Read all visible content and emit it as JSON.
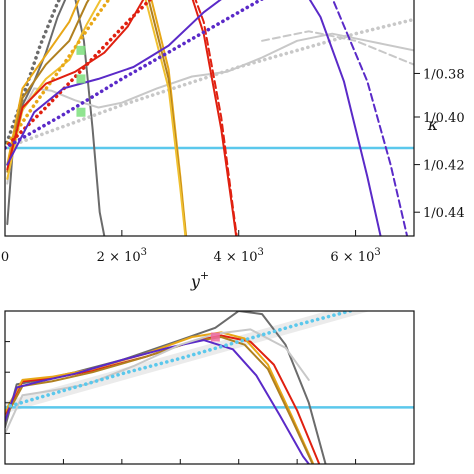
{
  "chart_data": [
    {
      "panel": "top",
      "type": "line",
      "xlabel": "y",
      "xlabel_sup": "+",
      "xlim": [
        0,
        7000
      ],
      "x_ticks": [
        {
          "value": 0,
          "label": "0",
          "sup": ""
        },
        {
          "value": 2000,
          "label": "2 × 10",
          "sup": "3"
        },
        {
          "value": 4000,
          "label": "4 × 10",
          "sup": "3"
        },
        {
          "value": 6000,
          "label": "6 × 10",
          "sup": "3"
        }
      ],
      "ylim": [
        0.35,
        0.45
      ],
      "right_axis": {
        "label": "κ",
        "ticks": [
          {
            "value": 0.3817,
            "label": "1/0.38"
          },
          {
            "value": 0.4,
            "label": "1/0.40"
          },
          {
            "value": 0.42,
            "label": "1/0.42"
          },
          {
            "value": 0.44,
            "label": "1/0.44"
          }
        ]
      },
      "reference_line": {
        "y": 0.413,
        "color": "#5bc8ec"
      },
      "series": [
        {
          "color": "#6b6b6b",
          "style": "solid",
          "x": [
            40,
            150,
            300,
            500,
            700,
            900,
            1150,
            1350,
            1500,
            1620,
            1700
          ],
          "y": [
            0.445,
            0.408,
            0.395,
            0.385,
            0.373,
            0.358,
            0.344,
            0.368,
            0.405,
            0.44,
            0.45
          ]
        },
        {
          "color": "#6b6b6b",
          "style": "dotted",
          "x": [
            0,
            300,
            600,
            900,
            1200,
            1500
          ],
          "y": [
            0.413,
            0.392,
            0.37,
            0.352,
            0.338,
            0.32
          ]
        },
        {
          "color": "#c8c8c8",
          "style": "solid",
          "x": [
            40,
            200,
            500,
            800,
            1200,
            1600,
            2000,
            2600,
            3200,
            3800,
            4400,
            5000,
            5600,
            6200,
            7000
          ],
          "y": [
            0.428,
            0.402,
            0.388,
            0.389,
            0.393,
            0.396,
            0.394,
            0.388,
            0.383,
            0.381,
            0.375,
            0.368,
            0.365,
            0.368,
            0.372
          ]
        },
        {
          "color": "#c8c8c8",
          "style": "dashed",
          "x": [
            4400,
            5200,
            6000,
            6600,
            7000
          ],
          "y": [
            0.368,
            0.364,
            0.368,
            0.374,
            0.378
          ]
        },
        {
          "color": "#c8c8c8",
          "style": "dotted",
          "x": [
            0,
            1000,
            2000,
            3000,
            4000,
            5000,
            6000,
            7000
          ],
          "y": [
            0.413,
            0.404,
            0.395,
            0.387,
            0.379,
            0.372,
            0.365,
            0.359
          ]
        },
        {
          "color": "#e8a717",
          "style": "solid",
          "x": [
            40,
            300,
            700,
            1100,
            1400,
            1700,
            2000,
            2400,
            2800,
            3000,
            3100,
            3150
          ],
          "y": [
            0.42,
            0.388,
            0.374,
            0.36,
            0.343,
            0.333,
            0.33,
            0.34,
            0.38,
            0.425,
            0.45,
            0.455
          ]
        },
        {
          "color": "#b08020",
          "style": "solid",
          "x": [
            40,
            300,
            700,
            1100,
            1400,
            1700,
            2000,
            2400,
            2800,
            3000,
            3100,
            3150
          ],
          "y": [
            0.423,
            0.392,
            0.378,
            0.368,
            0.352,
            0.34,
            0.335,
            0.345,
            0.384,
            0.428,
            0.452,
            0.456
          ]
        },
        {
          "color": "#f0c030",
          "style": "solid",
          "x": [
            40,
            300,
            700,
            1100,
            1400,
            1700,
            2000,
            2400,
            2800,
            3000,
            3100,
            3150
          ],
          "y": [
            0.426,
            0.397,
            0.384,
            0.376,
            0.361,
            0.348,
            0.342,
            0.35,
            0.388,
            0.43,
            0.453,
            0.456
          ]
        },
        {
          "color": "#e8a717",
          "style": "dotted",
          "x": [
            0,
            500,
            1000,
            1500,
            2000,
            2500
          ],
          "y": [
            0.413,
            0.395,
            0.378,
            0.36,
            0.343,
            0.325
          ]
        },
        {
          "color": "#e02010",
          "style": "solid",
          "x": [
            40,
            300,
            700,
            1200,
            1700,
            2100,
            2500,
            2800,
            3100,
            3400,
            3700,
            3900,
            4000
          ],
          "y": [
            0.422,
            0.396,
            0.386,
            0.381,
            0.373,
            0.362,
            0.345,
            0.338,
            0.342,
            0.365,
            0.405,
            0.44,
            0.458
          ]
        },
        {
          "color": "#e02010",
          "style": "dashed",
          "x": [
            2400,
            2800,
            3100,
            3400,
            3700,
            3900,
            4000
          ],
          "y": [
            0.348,
            0.337,
            0.34,
            0.36,
            0.4,
            0.438,
            0.456
          ]
        },
        {
          "color": "#e02010",
          "style": "dotted",
          "x": [
            0,
            700,
            1400,
            2100,
            2800,
            3300
          ],
          "y": [
            0.413,
            0.396,
            0.378,
            0.36,
            0.343,
            0.33
          ]
        },
        {
          "color": "#5a2ac8",
          "style": "solid",
          "x": [
            40,
            500,
            1000,
            1600,
            2200,
            2800,
            3400,
            4000,
            4600,
            5000,
            5400,
            5800,
            6200,
            6500
          ],
          "y": [
            0.42,
            0.398,
            0.388,
            0.384,
            0.379,
            0.37,
            0.356,
            0.345,
            0.338,
            0.342,
            0.358,
            0.385,
            0.425,
            0.458
          ]
        },
        {
          "color": "#5a2ac8",
          "style": "dashed",
          "x": [
            4400,
            5000,
            5600,
            6200,
            6600,
            6900
          ],
          "y": [
            0.337,
            0.336,
            0.35,
            0.385,
            0.42,
            0.452
          ]
        },
        {
          "color": "#5a2ac8",
          "style": "dotted",
          "x": [
            0,
            1000,
            2000,
            3000,
            4000,
            5000,
            5900
          ],
          "y": [
            0.413,
            0.399,
            0.384,
            0.37,
            0.356,
            0.342,
            0.328
          ]
        }
      ],
      "markers": [
        {
          "x": 1000,
          "y": 0.334,
          "color": "#ef6aa0"
        },
        {
          "x": 1850,
          "y": 0.339,
          "color": "#ef6aa0"
        },
        {
          "x": 2750,
          "y": 0.34,
          "color": "#ef6aa0"
        },
        {
          "x": 3600,
          "y": 0.341,
          "color": "#ef6aa0"
        },
        {
          "x": 4600,
          "y": 0.341,
          "color": "#ef6aa0"
        },
        {
          "x": 1300,
          "y": 0.372,
          "color": "#7ddf7d"
        },
        {
          "x": 1300,
          "y": 0.384,
          "color": "#7ddf7d"
        },
        {
          "x": 1300,
          "y": 0.398,
          "color": "#7ddf7d"
        }
      ]
    },
    {
      "panel": "bottom",
      "type": "line",
      "xlim": [
        0,
        7000
      ],
      "ylim": [
        0.35,
        0.45
      ],
      "reference_line": {
        "y": 0.413,
        "color": "#5bc8ec"
      },
      "band": {
        "x": [
          0,
          7000
        ],
        "y": [
          0.413,
          0.338
        ],
        "color": "#e6e6e6"
      },
      "series": [
        {
          "color": "#6b6b6b",
          "style": "solid",
          "x": [
            0,
            200,
            600,
            1200,
            2000,
            3000,
            3600,
            4000,
            4400,
            4800,
            5200,
            5500
          ],
          "y": [
            0.426,
            0.398,
            0.395,
            0.39,
            0.382,
            0.369,
            0.361,
            0.35,
            0.352,
            0.372,
            0.41,
            0.452
          ]
        },
        {
          "color": "#e02010",
          "style": "solid",
          "x": [
            0,
            300,
            800,
            1500,
            2400,
            3200,
            3700,
            4200,
            4600,
            5000,
            5400
          ],
          "y": [
            0.418,
            0.396,
            0.394,
            0.389,
            0.38,
            0.37,
            0.366,
            0.37,
            0.385,
            0.415,
            0.452
          ]
        },
        {
          "color": "#e8a717",
          "style": "solid",
          "x": [
            0,
            300,
            800,
            1500,
            2400,
            3200,
            3700,
            4100,
            4500,
            4900,
            5300
          ],
          "y": [
            0.416,
            0.395,
            0.393,
            0.388,
            0.378,
            0.367,
            0.364,
            0.368,
            0.385,
            0.418,
            0.452
          ]
        },
        {
          "color": "#b08020",
          "style": "solid",
          "x": [
            0,
            300,
            800,
            1500,
            2400,
            3200,
            3700,
            4100,
            4500,
            4900,
            5300
          ],
          "y": [
            0.42,
            0.399,
            0.396,
            0.39,
            0.38,
            0.37,
            0.367,
            0.372,
            0.388,
            0.42,
            0.453
          ]
        },
        {
          "color": "#5a2ac8",
          "style": "solid",
          "x": [
            0,
            200,
            600,
            1200,
            2000,
            2800,
            3400,
            3900,
            4300,
            4700,
            5100,
            5400
          ],
          "y": [
            0.422,
            0.4,
            0.396,
            0.391,
            0.382,
            0.374,
            0.369,
            0.375,
            0.392,
            0.418,
            0.445,
            0.46
          ]
        },
        {
          "color": "#c8c8c8",
          "style": "solid",
          "x": [
            0,
            300,
            800,
            1400,
            2200,
            3000,
            3600,
            4200,
            4800,
            5200
          ],
          "y": [
            0.43,
            0.405,
            0.402,
            0.398,
            0.386,
            0.372,
            0.365,
            0.362,
            0.374,
            0.395
          ]
        },
        {
          "color": "#5bc8ec",
          "style": "dotted",
          "x": [
            0,
            1000,
            2000,
            3000,
            4000,
            5000,
            6000,
            7000
          ],
          "y": [
            0.413,
            0.402,
            0.391,
            0.381,
            0.37,
            0.359,
            0.349,
            0.338
          ]
        }
      ],
      "markers": [
        {
          "x": 3600,
          "y": 0.367,
          "color": "#ef6aa0"
        }
      ]
    }
  ]
}
